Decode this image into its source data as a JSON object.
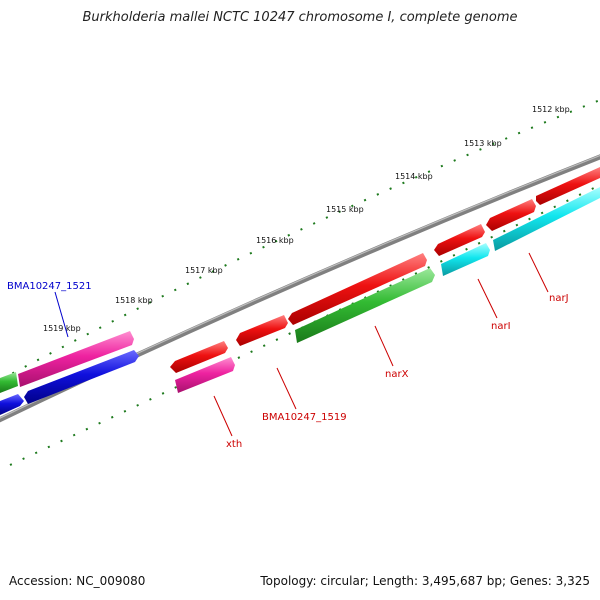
{
  "title": "Burkholderia mallei NCTC 10247 chromosome I, complete genome",
  "footer": {
    "accession": "Accession: NC_009080",
    "stats": "Topology: circular; Length: 3,495,687 bp; Genes: 3,325"
  },
  "scale_labels": [
    "1512 kbp",
    "1513 kbp",
    "1514 kbp",
    "1515 kbp",
    "1516 kbp",
    "1517 kbp",
    "1518 kbp",
    "1519 kbp"
  ],
  "gene_labels": [
    "BMA10247_1521",
    "BMA10247_1519",
    "xth",
    "narX",
    "narI",
    "narJ"
  ],
  "colors": {
    "backbone": "#808080",
    "ticks": "#1e7a1e",
    "red_gene": "#ee1111",
    "pink_gene": "#ee22a0",
    "blue_gene": "#1010dd",
    "green_gene": "#33bb33",
    "cyan_gene": "#11e6ee",
    "label_red": "#cc0000",
    "label_blue": "#0000cc"
  }
}
